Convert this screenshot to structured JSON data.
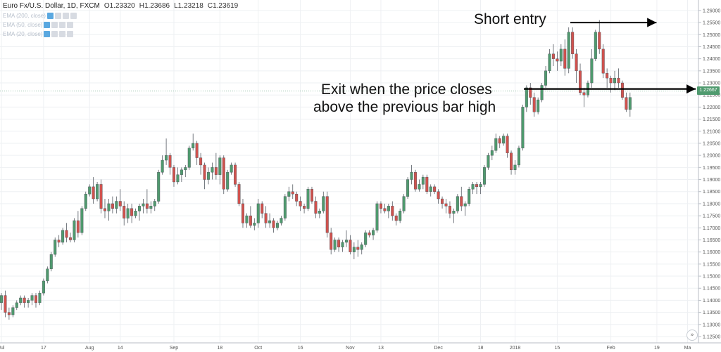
{
  "header": {
    "symbol": "Euro Fx/U.S. Dollar, 1D, FXCM",
    "open": "O1.23320",
    "high": "H1.23686",
    "low": "L1.23218",
    "close": "C1.23619"
  },
  "indicators": [
    {
      "label": "EMA (200, close)"
    },
    {
      "label": "EMA (50, close)"
    },
    {
      "label": "EMA (20, close)"
    }
  ],
  "annotations": {
    "short_entry": "Short entry",
    "exit_line1": "Exit when the price closes",
    "exit_line2": "above the previous bar high"
  },
  "last_price_label": "1.22667",
  "scroll_icon": "double-chevron-right-icon",
  "colors": {
    "up": "#4f9a6e",
    "down": "#d0524e",
    "grid": "#eef0f3",
    "axis_text": "#555555",
    "annotation": "#000000"
  },
  "chart_data": {
    "type": "candlestick",
    "symbol": "EUR/USD",
    "timeframe": "1D",
    "ylim": [
      1.125,
      1.262
    ],
    "y_ticks": [
      "1.26000",
      "1.25500",
      "1.25000",
      "1.24500",
      "1.24000",
      "1.23500",
      "1.23000",
      "1.22500",
      "1.22000",
      "1.21500",
      "1.21000",
      "1.20500",
      "1.20000",
      "1.19500",
      "1.19000",
      "1.18500",
      "1.18000",
      "1.17500",
      "1.17000",
      "1.16500",
      "1.16000",
      "1.15500",
      "1.15000",
      "1.14500",
      "1.14000",
      "1.13500",
      "1.13000",
      "1.12500"
    ],
    "x_ticks": [
      {
        "label": "Jul",
        "bar": 0
      },
      {
        "label": "17",
        "bar": 11
      },
      {
        "label": "Aug",
        "bar": 23
      },
      {
        "label": "14",
        "bar": 31
      },
      {
        "label": "Sep",
        "bar": 45
      },
      {
        "label": "18",
        "bar": 57
      },
      {
        "label": "Oct",
        "bar": 67
      },
      {
        "label": "16",
        "bar": 78
      },
      {
        "label": "Nov",
        "bar": 91
      },
      {
        "label": "13",
        "bar": 99
      },
      {
        "label": "Dec",
        "bar": 114
      },
      {
        "label": "18",
        "bar": 125
      },
      {
        "label": "2018",
        "bar": 134
      },
      {
        "label": "15",
        "bar": 145
      },
      {
        "label": "Feb",
        "bar": 159
      },
      {
        "label": "19",
        "bar": 171
      },
      {
        "label": "Ma",
        "bar": 179
      }
    ],
    "candles": [
      [
        1.139,
        1.143,
        1.136,
        1.142
      ],
      [
        1.142,
        1.144,
        1.133,
        1.135
      ],
      [
        1.135,
        1.137,
        1.132,
        1.134
      ],
      [
        1.134,
        1.138,
        1.133,
        1.137
      ],
      [
        1.137,
        1.14,
        1.136,
        1.139
      ],
      [
        1.139,
        1.142,
        1.138,
        1.141
      ],
      [
        1.141,
        1.142,
        1.137,
        1.139
      ],
      [
        1.139,
        1.141,
        1.137,
        1.14
      ],
      [
        1.14,
        1.143,
        1.138,
        1.142
      ],
      [
        1.142,
        1.143,
        1.137,
        1.139
      ],
      [
        1.139,
        1.144,
        1.138,
        1.143
      ],
      [
        1.143,
        1.149,
        1.142,
        1.148
      ],
      [
        1.148,
        1.154,
        1.147,
        1.153
      ],
      [
        1.153,
        1.16,
        1.152,
        1.159
      ],
      [
        1.159,
        1.166,
        1.158,
        1.165
      ],
      [
        1.165,
        1.167,
        1.162,
        1.164
      ],
      [
        1.164,
        1.17,
        1.163,
        1.169
      ],
      [
        1.169,
        1.172,
        1.164,
        1.166
      ],
      [
        1.166,
        1.168,
        1.164,
        1.165
      ],
      [
        1.165,
        1.174,
        1.164,
        1.173
      ],
      [
        1.173,
        1.177,
        1.166,
        1.168
      ],
      [
        1.168,
        1.179,
        1.167,
        1.178
      ],
      [
        1.178,
        1.185,
        1.177,
        1.184
      ],
      [
        1.184,
        1.188,
        1.183,
        1.187
      ],
      [
        1.187,
        1.191,
        1.18,
        1.182
      ],
      [
        1.182,
        1.189,
        1.181,
        1.188
      ],
      [
        1.188,
        1.19,
        1.176,
        1.178
      ],
      [
        1.178,
        1.182,
        1.174,
        1.177
      ],
      [
        1.177,
        1.182,
        1.173,
        1.18
      ],
      [
        1.18,
        1.183,
        1.176,
        1.178
      ],
      [
        1.178,
        1.183,
        1.176,
        1.181
      ],
      [
        1.181,
        1.186,
        1.177,
        1.179
      ],
      [
        1.179,
        1.181,
        1.171,
        1.174
      ],
      [
        1.174,
        1.18,
        1.172,
        1.178
      ],
      [
        1.178,
        1.18,
        1.172,
        1.175
      ],
      [
        1.175,
        1.178,
        1.174,
        1.177
      ],
      [
        1.177,
        1.18,
        1.173,
        1.179
      ],
      [
        1.179,
        1.182,
        1.176,
        1.18
      ],
      [
        1.18,
        1.186,
        1.176,
        1.178
      ],
      [
        1.178,
        1.181,
        1.176,
        1.179
      ],
      [
        1.179,
        1.182,
        1.177,
        1.181
      ],
      [
        1.181,
        1.194,
        1.18,
        1.193
      ],
      [
        1.193,
        1.2,
        1.192,
        1.198
      ],
      [
        1.198,
        1.207,
        1.196,
        1.2
      ],
      [
        1.2,
        1.201,
        1.192,
        1.195
      ],
      [
        1.195,
        1.196,
        1.187,
        1.189
      ],
      [
        1.189,
        1.195,
        1.188,
        1.192
      ],
      [
        1.192,
        1.195,
        1.189,
        1.194
      ],
      [
        1.194,
        1.196,
        1.191,
        1.195
      ],
      [
        1.195,
        1.204,
        1.194,
        1.203
      ],
      [
        1.203,
        1.209,
        1.202,
        1.205
      ],
      [
        1.205,
        1.206,
        1.196,
        1.199
      ],
      [
        1.199,
        1.201,
        1.192,
        1.196
      ],
      [
        1.196,
        1.197,
        1.186,
        1.19
      ],
      [
        1.19,
        1.195,
        1.188,
        1.193
      ],
      [
        1.193,
        1.197,
        1.19,
        1.195
      ],
      [
        1.195,
        1.201,
        1.19,
        1.192
      ],
      [
        1.192,
        1.2,
        1.188,
        1.199
      ],
      [
        1.199,
        1.2,
        1.184,
        1.186
      ],
      [
        1.186,
        1.194,
        1.185,
        1.193
      ],
      [
        1.193,
        1.197,
        1.192,
        1.196
      ],
      [
        1.196,
        1.197,
        1.187,
        1.188
      ],
      [
        1.188,
        1.189,
        1.179,
        1.18
      ],
      [
        1.18,
        1.182,
        1.17,
        1.172
      ],
      [
        1.172,
        1.176,
        1.17,
        1.175
      ],
      [
        1.175,
        1.179,
        1.17,
        1.171
      ],
      [
        1.171,
        1.174,
        1.169,
        1.172
      ],
      [
        1.172,
        1.182,
        1.17,
        1.18
      ],
      [
        1.18,
        1.181,
        1.174,
        1.176
      ],
      [
        1.176,
        1.179,
        1.17,
        1.172
      ],
      [
        1.172,
        1.176,
        1.17,
        1.173
      ],
      [
        1.173,
        1.174,
        1.168,
        1.17
      ],
      [
        1.17,
        1.173,
        1.169,
        1.172
      ],
      [
        1.172,
        1.175,
        1.171,
        1.174
      ],
      [
        1.174,
        1.184,
        1.173,
        1.183
      ],
      [
        1.183,
        1.187,
        1.181,
        1.185
      ],
      [
        1.185,
        1.188,
        1.182,
        1.184
      ],
      [
        1.184,
        1.185,
        1.179,
        1.181
      ],
      [
        1.181,
        1.183,
        1.177,
        1.179
      ],
      [
        1.179,
        1.18,
        1.176,
        1.178
      ],
      [
        1.178,
        1.187,
        1.177,
        1.186
      ],
      [
        1.186,
        1.187,
        1.18,
        1.181
      ],
      [
        1.181,
        1.183,
        1.174,
        1.176
      ],
      [
        1.176,
        1.178,
        1.174,
        1.177
      ],
      [
        1.177,
        1.185,
        1.176,
        1.183
      ],
      [
        1.183,
        1.185,
        1.166,
        1.168
      ],
      [
        1.168,
        1.17,
        1.159,
        1.161
      ],
      [
        1.161,
        1.166,
        1.16,
        1.165
      ],
      [
        1.165,
        1.166,
        1.16,
        1.162
      ],
      [
        1.162,
        1.165,
        1.16,
        1.164
      ],
      [
        1.164,
        1.169,
        1.162,
        1.165
      ],
      [
        1.165,
        1.167,
        1.159,
        1.16
      ],
      [
        1.16,
        1.164,
        1.157,
        1.162
      ],
      [
        1.162,
        1.165,
        1.158,
        1.161
      ],
      [
        1.161,
        1.164,
        1.159,
        1.163
      ],
      [
        1.163,
        1.169,
        1.162,
        1.168
      ],
      [
        1.168,
        1.169,
        1.166,
        1.167
      ],
      [
        1.167,
        1.17,
        1.165,
        1.169
      ],
      [
        1.169,
        1.181,
        1.168,
        1.18
      ],
      [
        1.18,
        1.181,
        1.176,
        1.178
      ],
      [
        1.178,
        1.18,
        1.176,
        1.177
      ],
      [
        1.177,
        1.18,
        1.174,
        1.179
      ],
      [
        1.179,
        1.181,
        1.173,
        1.175
      ],
      [
        1.175,
        1.176,
        1.171,
        1.173
      ],
      [
        1.173,
        1.178,
        1.172,
        1.177
      ],
      [
        1.177,
        1.184,
        1.176,
        1.183
      ],
      [
        1.183,
        1.191,
        1.182,
        1.19
      ],
      [
        1.19,
        1.196,
        1.188,
        1.193
      ],
      [
        1.193,
        1.194,
        1.185,
        1.186
      ],
      [
        1.186,
        1.19,
        1.185,
        1.188
      ],
      [
        1.188,
        1.192,
        1.186,
        1.191
      ],
      [
        1.191,
        1.192,
        1.184,
        1.185
      ],
      [
        1.185,
        1.188,
        1.183,
        1.187
      ],
      [
        1.187,
        1.188,
        1.184,
        1.185
      ],
      [
        1.185,
        1.186,
        1.18,
        1.182
      ],
      [
        1.182,
        1.183,
        1.178,
        1.18
      ],
      [
        1.18,
        1.182,
        1.176,
        1.179
      ],
      [
        1.179,
        1.181,
        1.174,
        1.176
      ],
      [
        1.176,
        1.178,
        1.172,
        1.177
      ],
      [
        1.177,
        1.184,
        1.176,
        1.183
      ],
      [
        1.183,
        1.187,
        1.177,
        1.179
      ],
      [
        1.179,
        1.181,
        1.175,
        1.18
      ],
      [
        1.18,
        1.187,
        1.179,
        1.186
      ],
      [
        1.186,
        1.189,
        1.184,
        1.188
      ],
      [
        1.188,
        1.189,
        1.184,
        1.187
      ],
      [
        1.187,
        1.189,
        1.184,
        1.188
      ],
      [
        1.188,
        1.196,
        1.187,
        1.195
      ],
      [
        1.195,
        1.201,
        1.194,
        1.2
      ],
      [
        1.2,
        1.204,
        1.198,
        1.202
      ],
      [
        1.202,
        1.209,
        1.201,
        1.207
      ],
      [
        1.207,
        1.208,
        1.203,
        1.205
      ],
      [
        1.205,
        1.209,
        1.204,
        1.208
      ],
      [
        1.208,
        1.209,
        1.199,
        1.201
      ],
      [
        1.201,
        1.202,
        1.192,
        1.194
      ],
      [
        1.194,
        1.198,
        1.192,
        1.196
      ],
      [
        1.196,
        1.204,
        1.195,
        1.203
      ],
      [
        1.203,
        1.221,
        1.202,
        1.22
      ],
      [
        1.22,
        1.229,
        1.218,
        1.228
      ],
      [
        1.228,
        1.23,
        1.221,
        1.224
      ],
      [
        1.224,
        1.226,
        1.216,
        1.218
      ],
      [
        1.218,
        1.224,
        1.217,
        1.223
      ],
      [
        1.223,
        1.23,
        1.222,
        1.229
      ],
      [
        1.229,
        1.237,
        1.228,
        1.235
      ],
      [
        1.235,
        1.244,
        1.234,
        1.242
      ],
      [
        1.242,
        1.246,
        1.237,
        1.24
      ],
      [
        1.24,
        1.243,
        1.235,
        1.239
      ],
      [
        1.239,
        1.246,
        1.237,
        1.244
      ],
      [
        1.244,
        1.248,
        1.233,
        1.236
      ],
      [
        1.236,
        1.253,
        1.234,
        1.251
      ],
      [
        1.251,
        1.253,
        1.24,
        1.242
      ],
      [
        1.242,
        1.244,
        1.23,
        1.235
      ],
      [
        1.235,
        1.238,
        1.225,
        1.226
      ],
      [
        1.226,
        1.228,
        1.22,
        1.225
      ],
      [
        1.225,
        1.231,
        1.224,
        1.23
      ],
      [
        1.23,
        1.244,
        1.228,
        1.24
      ],
      [
        1.24,
        1.252,
        1.239,
        1.251
      ],
      [
        1.251,
        1.256,
        1.242,
        1.244
      ],
      [
        1.244,
        1.246,
        1.232,
        1.234
      ],
      [
        1.234,
        1.236,
        1.228,
        1.232
      ],
      [
        1.232,
        1.233,
        1.226,
        1.23
      ],
      [
        1.23,
        1.235,
        1.227,
        1.232
      ],
      [
        1.232,
        1.236,
        1.228,
        1.23
      ],
      [
        1.23,
        1.231,
        1.223,
        1.224
      ],
      [
        1.224,
        1.226,
        1.218,
        1.219
      ],
      [
        1.219,
        1.226,
        1.216,
        1.224
      ]
    ],
    "annotations": [
      {
        "text": "Short entry",
        "arrow": "right",
        "target_bar": 172,
        "target_price": 1.255
      },
      {
        "text": "Exit when the price closes above the previous bar high",
        "line": "horizontal",
        "price": 1.2275
      }
    ],
    "last_price": 1.22667
  }
}
